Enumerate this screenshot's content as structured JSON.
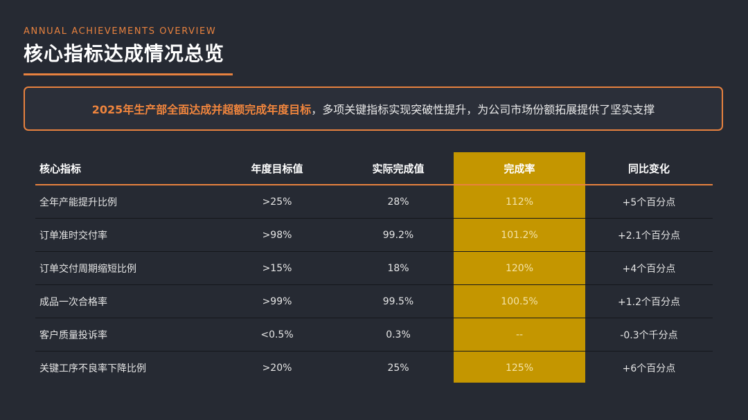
{
  "header": {
    "eyebrow": "ANNUAL ACHIEVEMENTS OVERVIEW",
    "title": "核心指标达成情况总览"
  },
  "banner": {
    "highlight": "2025年生产部全面达成并超额完成年度目标",
    "rest": "，多项关键指标实现突破性提升，为公司市场份额拓展提供了坚实支撑"
  },
  "table": {
    "headers": [
      "核心指标",
      "年度目标值",
      "实际完成值",
      "完成率",
      "同比变化"
    ],
    "rows": [
      [
        "全年产能提升比例",
        ">25%",
        "28%",
        "112%",
        "+5个百分点"
      ],
      [
        "订单准时交付率",
        ">98%",
        "99.2%",
        "101.2%",
        "+2.1个百分点"
      ],
      [
        "订单交付周期缩短比例",
        ">15%",
        "18%",
        "120%",
        "+4个百分点"
      ],
      [
        "成品一次合格率",
        ">99%",
        "99.5%",
        "100.5%",
        "+1.2个百分点"
      ],
      [
        "客户质量投诉率",
        "<0.5%",
        "0.3%",
        "--",
        "-0.3个千分点"
      ],
      [
        "关键工序不良率下降比例",
        ">20%",
        "25%",
        "125%",
        "+6个百分点"
      ]
    ]
  },
  "colors": {
    "background": "#262a33",
    "accent": "#e8823f",
    "highlight_column": "#c49600"
  }
}
